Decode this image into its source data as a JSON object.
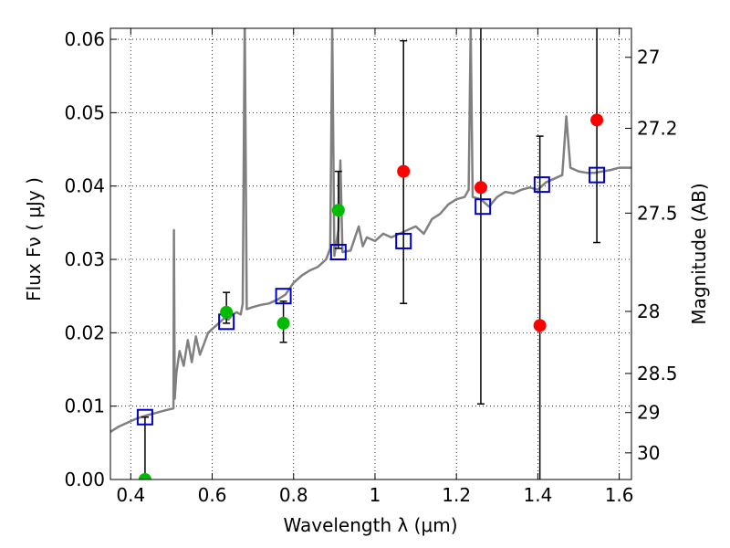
{
  "chart_data": {
    "type": "scatter",
    "xlabel": "Wavelength  λ (μm)",
    "ylabel_left": "Flux  Fν  ( μJy )",
    "ylabel_right": "Magnitude (AB)",
    "xlim": [
      0.35,
      1.63
    ],
    "ylim": [
      0.0,
      0.0615
    ],
    "grid": true,
    "x_ticks": [
      {
        "value": 0.4,
        "label": "0.4"
      },
      {
        "value": 0.6,
        "label": "0.6"
      },
      {
        "value": 0.8,
        "label": "0.8"
      },
      {
        "value": 1.0,
        "label": "1"
      },
      {
        "value": 1.2,
        "label": "1.2"
      },
      {
        "value": 1.4,
        "label": "1.4"
      },
      {
        "value": 1.6,
        "label": "1.6"
      }
    ],
    "y_ticks": [
      {
        "value": 0.0,
        "label": "0.00"
      },
      {
        "value": 0.01,
        "label": "0.01"
      },
      {
        "value": 0.02,
        "label": "0.02"
      },
      {
        "value": 0.03,
        "label": "0.03"
      },
      {
        "value": 0.04,
        "label": "0.04"
      },
      {
        "value": 0.05,
        "label": "0.05"
      },
      {
        "value": 0.06,
        "label": "0.06"
      }
    ],
    "mag_ticks": [
      {
        "value": 27,
        "label": "27"
      },
      {
        "value": 27.2,
        "label": "27.2"
      },
      {
        "value": 27.5,
        "label": "27.5"
      },
      {
        "value": 28,
        "label": "28"
      },
      {
        "value": 28.5,
        "label": "28.5"
      },
      {
        "value": 29,
        "label": "29"
      },
      {
        "value": 30,
        "label": "30"
      }
    ],
    "model_spectrum": {
      "color": "#808080",
      "points": [
        [
          0.35,
          0.0065
        ],
        [
          0.37,
          0.0072
        ],
        [
          0.39,
          0.0077
        ],
        [
          0.41,
          0.0082
        ],
        [
          0.43,
          0.0086
        ],
        [
          0.45,
          0.0089
        ],
        [
          0.47,
          0.0092
        ],
        [
          0.49,
          0.0095
        ],
        [
          0.505,
          0.0097
        ],
        [
          0.506,
          0.034
        ],
        [
          0.508,
          0.011
        ],
        [
          0.512,
          0.0145
        ],
        [
          0.52,
          0.0175
        ],
        [
          0.53,
          0.0155
        ],
        [
          0.54,
          0.019
        ],
        [
          0.55,
          0.016
        ],
        [
          0.56,
          0.0195
        ],
        [
          0.57,
          0.017
        ],
        [
          0.58,
          0.0185
        ],
        [
          0.59,
          0.02
        ],
        [
          0.6,
          0.0205
        ],
        [
          0.61,
          0.021
        ],
        [
          0.62,
          0.0215
        ],
        [
          0.63,
          0.022
        ],
        [
          0.64,
          0.0218
        ],
        [
          0.65,
          0.0225
        ],
        [
          0.66,
          0.0228
        ],
        [
          0.67,
          0.0225
        ],
        [
          0.675,
          0.024
        ],
        [
          0.68,
          0.063
        ],
        [
          0.685,
          0.0232
        ],
        [
          0.7,
          0.0235
        ],
        [
          0.72,
          0.0238
        ],
        [
          0.74,
          0.024
        ],
        [
          0.76,
          0.0245
        ],
        [
          0.78,
          0.0252
        ],
        [
          0.8,
          0.0268
        ],
        [
          0.82,
          0.0278
        ],
        [
          0.84,
          0.0285
        ],
        [
          0.86,
          0.029
        ],
        [
          0.88,
          0.03
        ],
        [
          0.89,
          0.0315
        ],
        [
          0.895,
          0.0615
        ],
        [
          0.9,
          0.0305
        ],
        [
          0.91,
          0.034
        ],
        [
          0.915,
          0.0435
        ],
        [
          0.92,
          0.031
        ],
        [
          0.94,
          0.0312
        ],
        [
          0.96,
          0.0345
        ],
        [
          0.97,
          0.0318
        ],
        [
          0.98,
          0.033
        ],
        [
          1.0,
          0.0325
        ],
        [
          1.02,
          0.0335
        ],
        [
          1.04,
          0.033
        ],
        [
          1.06,
          0.0335
        ],
        [
          1.08,
          0.034
        ],
        [
          1.1,
          0.0345
        ],
        [
          1.12,
          0.0335
        ],
        [
          1.14,
          0.0355
        ],
        [
          1.16,
          0.0362
        ],
        [
          1.18,
          0.0375
        ],
        [
          1.2,
          0.0382
        ],
        [
          1.22,
          0.0385
        ],
        [
          1.23,
          0.0395
        ],
        [
          1.235,
          0.0615
        ],
        [
          1.24,
          0.0385
        ],
        [
          1.26,
          0.0382
        ],
        [
          1.28,
          0.0372
        ],
        [
          1.3,
          0.0385
        ],
        [
          1.32,
          0.0392
        ],
        [
          1.34,
          0.039
        ],
        [
          1.36,
          0.0395
        ],
        [
          1.38,
          0.0398
        ],
        [
          1.4,
          0.0395
        ],
        [
          1.42,
          0.0405
        ],
        [
          1.44,
          0.041
        ],
        [
          1.46,
          0.0415
        ],
        [
          1.47,
          0.0495
        ],
        [
          1.48,
          0.0425
        ],
        [
          1.5,
          0.042
        ],
        [
          1.52,
          0.0418
        ],
        [
          1.54,
          0.0418
        ],
        [
          1.56,
          0.042
        ],
        [
          1.58,
          0.0422
        ],
        [
          1.6,
          0.0425
        ],
        [
          1.63,
          0.0425
        ]
      ]
    },
    "series": [
      {
        "marker": "open-square",
        "color": "#0000cc",
        "points": [
          {
            "x": 0.435,
            "y": 0.0085
          },
          {
            "x": 0.635,
            "y": 0.0215
          },
          {
            "x": 0.775,
            "y": 0.025
          },
          {
            "x": 0.91,
            "y": 0.031
          },
          {
            "x": 1.07,
            "y": 0.0325
          },
          {
            "x": 1.265,
            "y": 0.0372
          },
          {
            "x": 1.41,
            "y": 0.0402
          },
          {
            "x": 1.545,
            "y": 0.0415
          }
        ]
      },
      {
        "marker": "filled-circle",
        "color": "#00bb00",
        "points": [
          {
            "x": 0.435,
            "y": 0.0,
            "yerr": [
              0.0,
              0.0085
            ]
          },
          {
            "x": 0.635,
            "y": 0.0228,
            "yerr": [
              0.0213,
              0.0255
            ]
          },
          {
            "x": 0.775,
            "y": 0.0213,
            "yerr": [
              0.0187,
              0.0243
            ]
          },
          {
            "x": 0.91,
            "y": 0.0367,
            "yerr": [
              0.0315,
              0.042
            ]
          }
        ]
      },
      {
        "marker": "filled-circle",
        "color": "#ff0000",
        "points": [
          {
            "x": 1.07,
            "y": 0.042,
            "yerr": [
              0.024,
              0.0598
            ]
          },
          {
            "x": 1.26,
            "y": 0.0398,
            "yerr": [
              0.0103,
              0.0615
            ]
          },
          {
            "x": 1.405,
            "y": 0.021,
            "yerr": [
              0.0,
              0.0468
            ]
          },
          {
            "x": 1.545,
            "y": 0.049,
            "yerr": [
              0.0323,
              0.0615
            ]
          }
        ]
      }
    ]
  }
}
